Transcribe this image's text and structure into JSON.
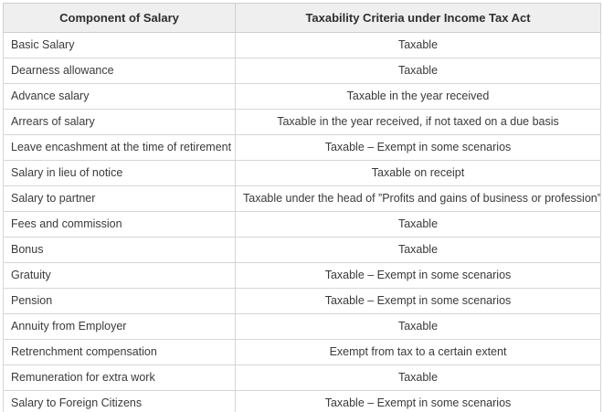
{
  "table": {
    "headers": {
      "component": "Component of Salary",
      "taxability": "Taxability Criteria under Income Tax Act"
    },
    "rows": [
      {
        "component": "Basic Salary",
        "taxability": "Taxable"
      },
      {
        "component": "Dearness allowance",
        "taxability": "Taxable"
      },
      {
        "component": "Advance salary",
        "taxability": "Taxable in the year received"
      },
      {
        "component": "Arrears of salary",
        "taxability": "Taxable in the year received, if not taxed on a due basis"
      },
      {
        "component": "Leave encashment at the time of retirement",
        "taxability": "Taxable – Exempt in some scenarios"
      },
      {
        "component": "Salary in lieu of notice",
        "taxability": "Taxable on receipt"
      },
      {
        "component": "Salary to partner",
        "taxability": "Taxable under the head of ”Profits and gains of business or profession”"
      },
      {
        "component": "Fees and commission",
        "taxability": "Taxable"
      },
      {
        "component": "Bonus",
        "taxability": "Taxable"
      },
      {
        "component": "Gratuity",
        "taxability": "Taxable – Exempt in some scenarios"
      },
      {
        "component": "Pension",
        "taxability": "Taxable – Exempt in some scenarios"
      },
      {
        "component": "Annuity from Employer",
        "taxability": "Taxable"
      },
      {
        "component": "Retrenchment compensation",
        "taxability": "Exempt from tax to a certain extent"
      },
      {
        "component": "Remuneration for extra work",
        "taxability": "Taxable"
      },
      {
        "component": "Salary to Foreign Citizens",
        "taxability": "Taxable – Exempt in some scenarios"
      }
    ],
    "colors": {
      "header_background": "#efefef",
      "grid_border": "#d6d6d6",
      "outer_border": "#b2b2b2",
      "text": "#3a3a3a"
    }
  }
}
